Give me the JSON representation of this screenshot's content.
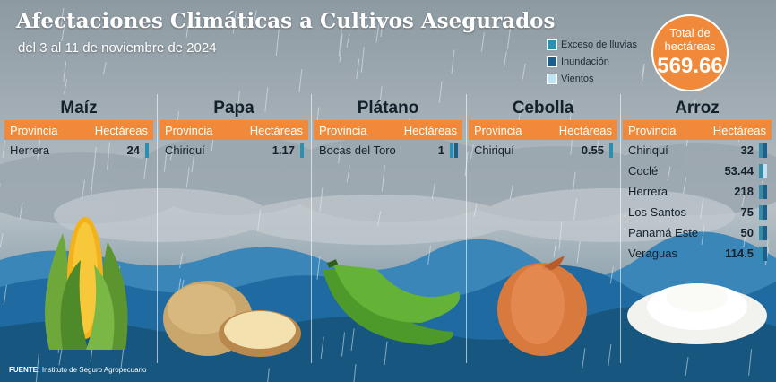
{
  "title": "Afectaciones Climáticas a Cultivos Asegurados",
  "subtitle": "del 3 al 11 de noviembre de 2024",
  "legend": [
    {
      "label": "Exceso de lluvias",
      "color": "#2b8fb0"
    },
    {
      "label": "Inundación",
      "color": "#1c5f8c"
    },
    {
      "label": "Vientos",
      "color": "#bfe3f2"
    }
  ],
  "total": {
    "label": "Total de hectáreas",
    "value": "569.66"
  },
  "header": {
    "provincia": "Provincia",
    "hectareas": "Hectáreas"
  },
  "crops": [
    {
      "name": "Maíz",
      "rows": [
        {
          "provincia": "Herrera",
          "hectareas": "24",
          "causes": [
            "lluvias"
          ]
        }
      ]
    },
    {
      "name": "Papa",
      "rows": [
        {
          "provincia": "Chiriquí",
          "hectareas": "1.17",
          "causes": [
            "lluvias"
          ]
        }
      ]
    },
    {
      "name": "Plátano",
      "rows": [
        {
          "provincia": "Bocas del Toro",
          "hectareas": "1",
          "causes": [
            "lluvias",
            "inundacion"
          ]
        }
      ]
    },
    {
      "name": "Cebolla",
      "rows": [
        {
          "provincia": "Chiriquí",
          "hectareas": "0.55",
          "causes": [
            "lluvias"
          ]
        }
      ]
    },
    {
      "name": "Arroz",
      "rows": [
        {
          "provincia": "Chiriquí",
          "hectareas": "32",
          "causes": [
            "lluvias",
            "inundacion"
          ]
        },
        {
          "provincia": "Coclé",
          "hectareas": "53.44",
          "causes": [
            "lluvias",
            "vientos"
          ]
        },
        {
          "provincia": "Herrera",
          "hectareas": "218",
          "causes": [
            "lluvias",
            "inundacion"
          ]
        },
        {
          "provincia": "Los Santos",
          "hectareas": "75",
          "causes": [
            "lluvias",
            "inundacion"
          ]
        },
        {
          "provincia": "Panamá Este",
          "hectareas": "50",
          "causes": [
            "lluvias",
            "inundacion"
          ]
        },
        {
          "provincia": "Veraguas",
          "hectareas": "114.5",
          "causes": [
            "lluvias",
            "inundacion"
          ]
        }
      ]
    }
  ],
  "source": {
    "label": "FUENTE:",
    "text": "Instituto de Seguro Agropecuario"
  }
}
